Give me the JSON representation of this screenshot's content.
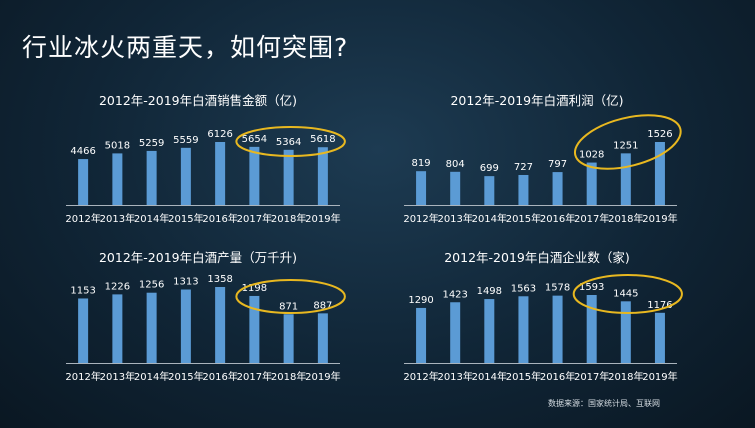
{
  "slide": {
    "title": "行业冰火两重天，如何突围?",
    "source": "数据来源：国家统计局、互联网"
  },
  "chart_data": [
    {
      "type": "bar",
      "title": "2012年-2019年白酒销售金额（亿)",
      "categories": [
        "2012年",
        "2013年",
        "2014年",
        "2015年",
        "2016年",
        "2017年",
        "2018年",
        "2019年"
      ],
      "values": [
        4466,
        5018,
        5259,
        5559,
        6126,
        5654,
        5364,
        5618
      ],
      "highlight": [
        "2017年",
        "2018年",
        "2019年"
      ]
    },
    {
      "type": "bar",
      "title": "2012年-2019年白酒利润（亿)",
      "categories": [
        "2012年",
        "2013年",
        "2014年",
        "2015年",
        "2016年",
        "2017年",
        "2018年",
        "2019年"
      ],
      "values": [
        819,
        804,
        699,
        727,
        797,
        1028,
        1251,
        1526
      ],
      "highlight": [
        "2017年",
        "2018年",
        "2019年"
      ]
    },
    {
      "type": "bar",
      "title": "2012年-2019年白酒产量（万千升)",
      "categories": [
        "2012年",
        "2013年",
        "2014年",
        "2015年",
        "2016年",
        "2017年",
        "2018年",
        "2019年"
      ],
      "values": [
        1153,
        1226,
        1256,
        1313,
        1358,
        1198,
        871,
        887
      ],
      "highlight": [
        "2017年",
        "2018年",
        "2019年"
      ]
    },
    {
      "type": "bar",
      "title": "2012年-2019年白酒企业数（家)",
      "categories": [
        "2012年",
        "2013年",
        "2014年",
        "2015年",
        "2016年",
        "2017年",
        "2018年",
        "2019年"
      ],
      "values": [
        1290,
        1423,
        1498,
        1563,
        1578,
        1593,
        1445,
        1176
      ],
      "highlight": [
        "2017年",
        "2018年",
        "2019年"
      ]
    }
  ]
}
